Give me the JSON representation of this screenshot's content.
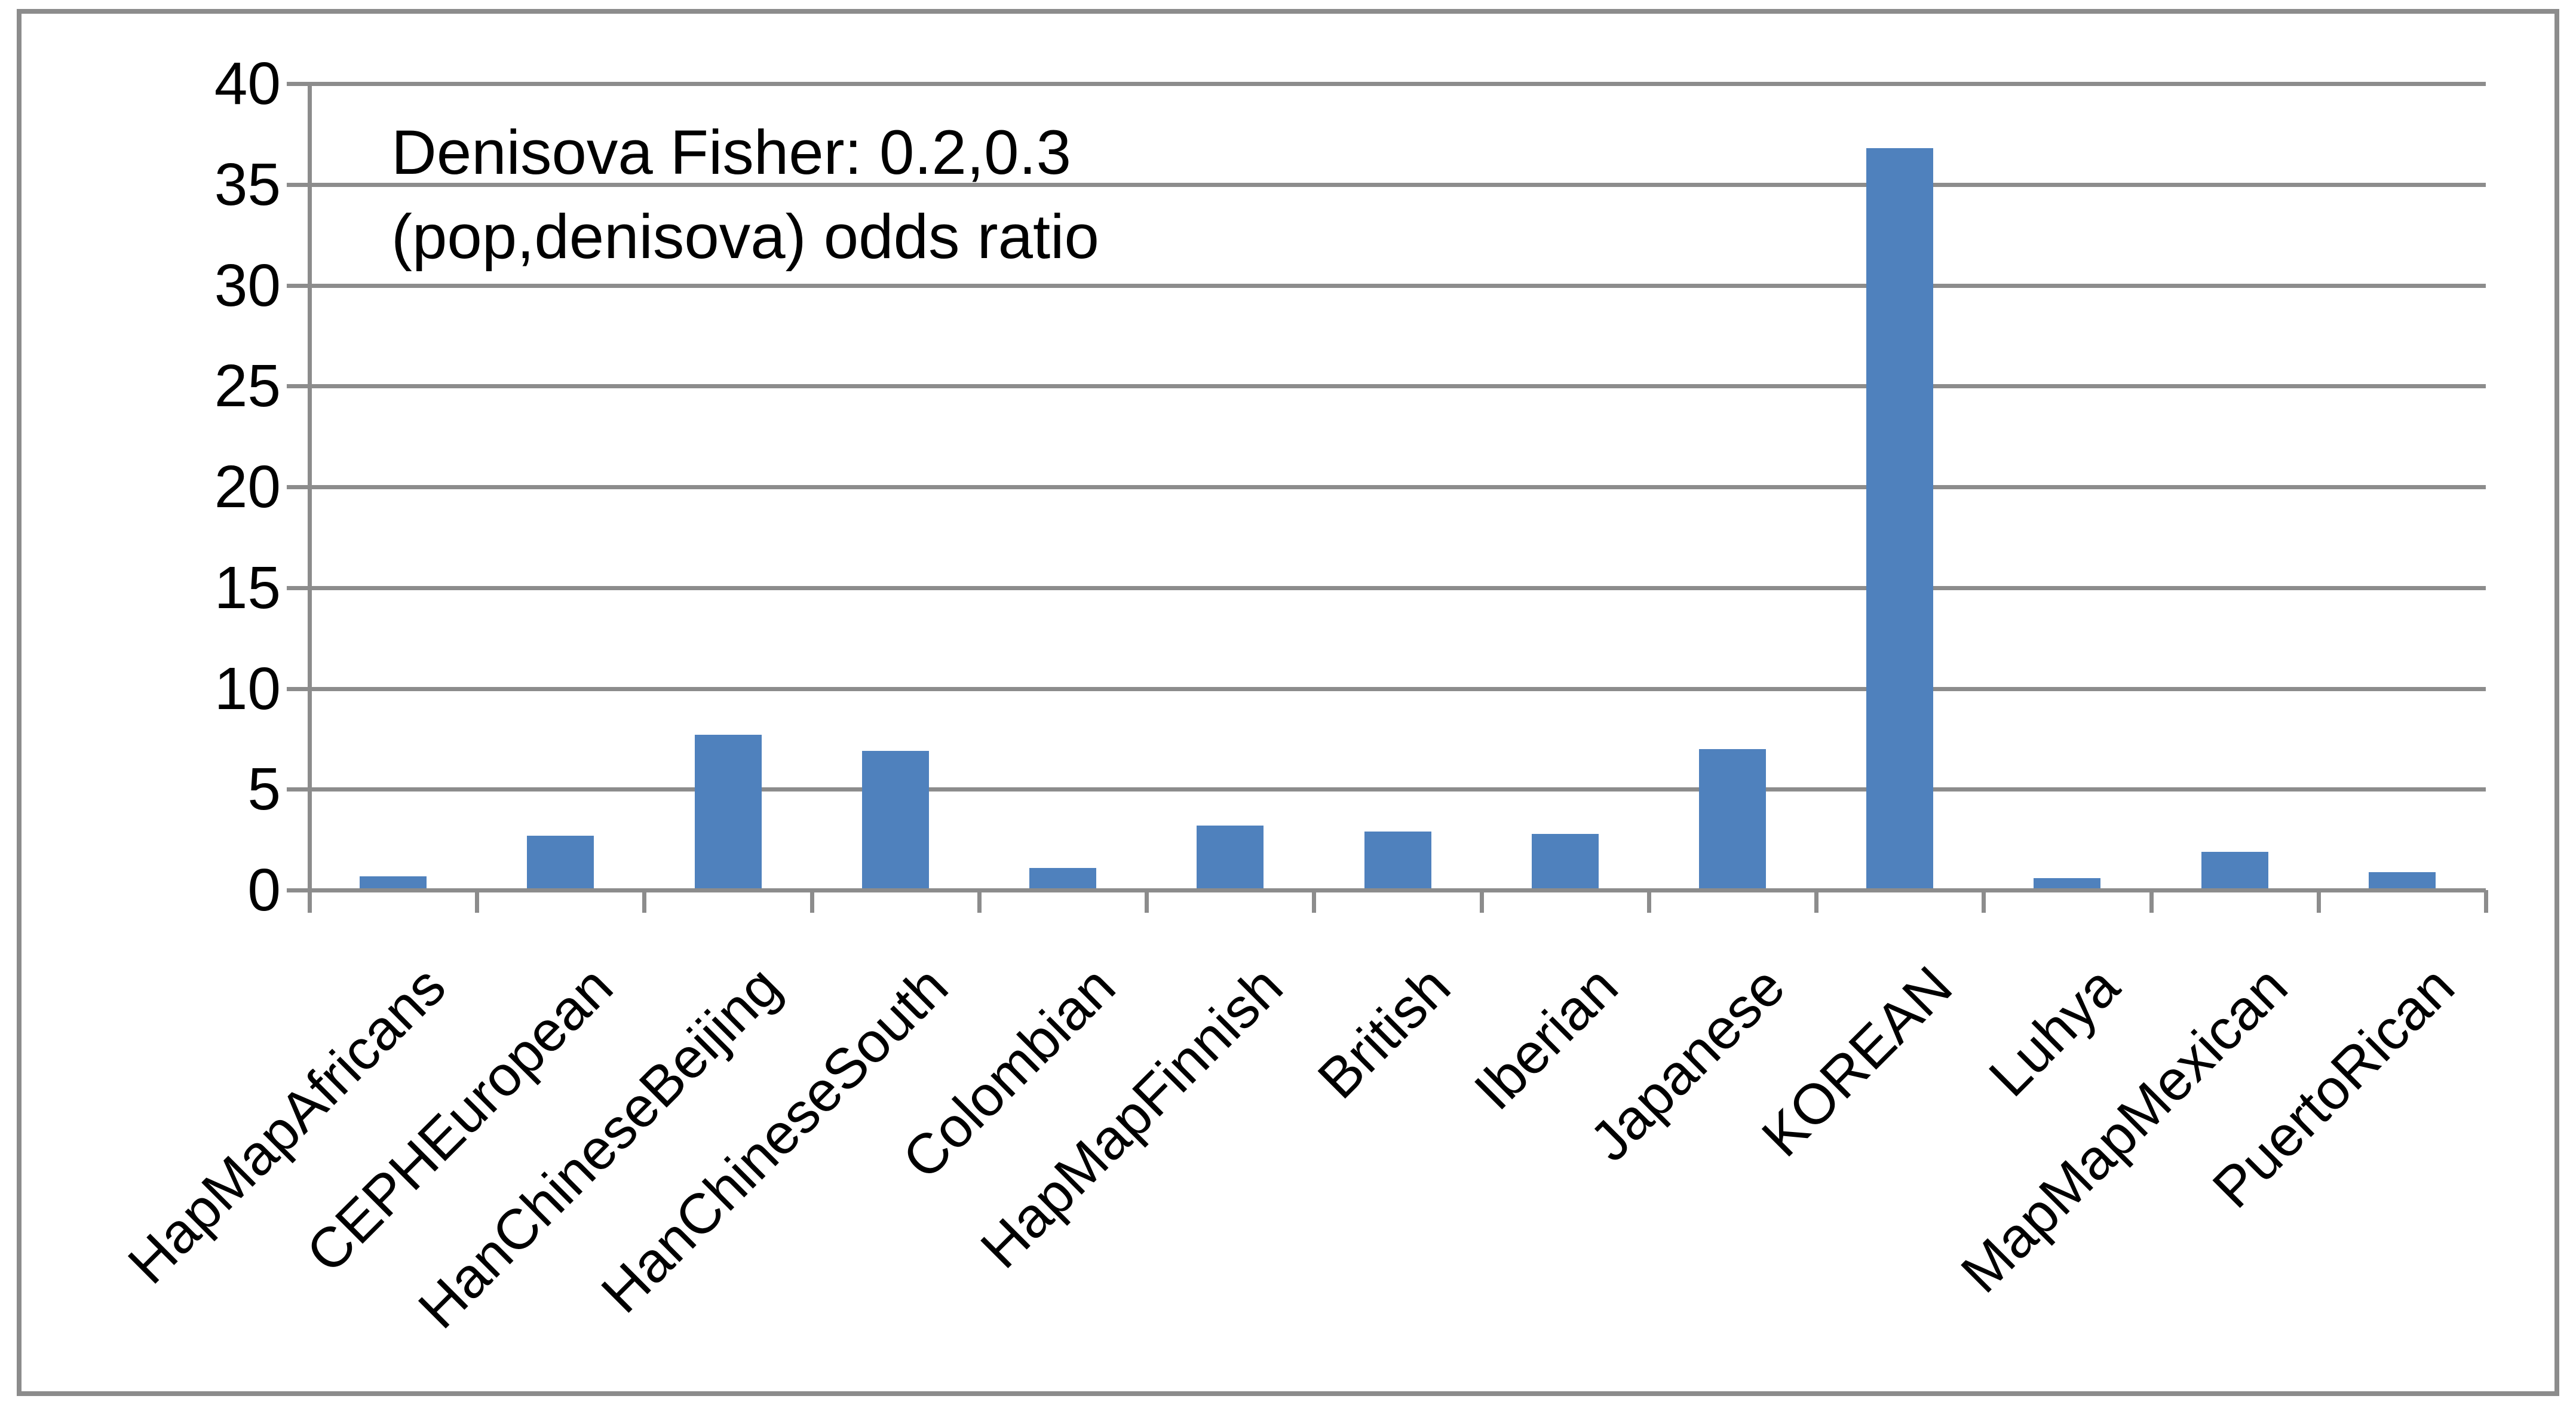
{
  "chart_data": {
    "type": "bar",
    "annotation_line1": "Denisova Fisher: 0.2,0.3",
    "annotation_line2": "(pop,denisova) odds ratio",
    "categories": [
      "HapMapAfricans",
      "CEPHEuropean",
      "HanChineseBeijing",
      "HanChineseSouth",
      "Colombian",
      "HapMapFinnish",
      "British",
      "Iberian",
      "Japanese",
      "KOREAN",
      "Luhya",
      "MapMapMexican",
      "PuertoRican"
    ],
    "values": [
      0.6,
      2.6,
      7.6,
      6.8,
      1.0,
      3.1,
      2.8,
      2.7,
      6.9,
      36.7,
      0.5,
      1.8,
      0.8
    ],
    "title": "",
    "xlabel": "",
    "ylabel": "",
    "ylim": [
      0,
      40
    ],
    "y_ticks": [
      0,
      5,
      10,
      15,
      20,
      25,
      30,
      35,
      40
    ],
    "grid": "horizontal",
    "legend": "none",
    "bar_color": "#4F81BD",
    "gridline_color": "#8C8C8C",
    "text_color": "#000000",
    "background_color": "#FFFFFF"
  }
}
